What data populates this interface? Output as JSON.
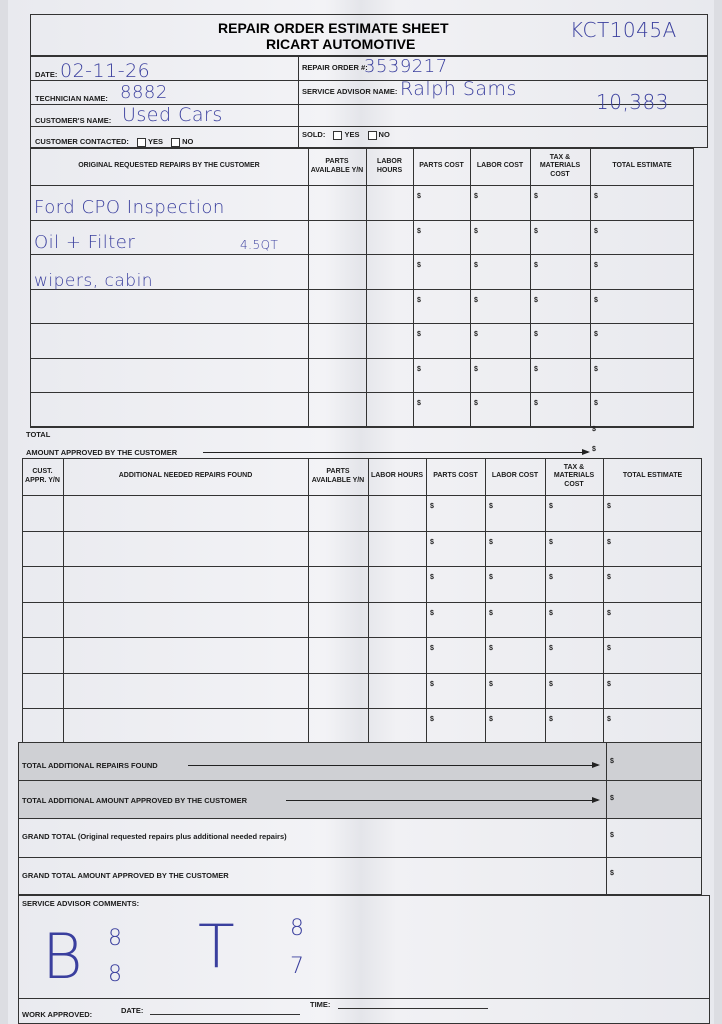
{
  "header": {
    "title": "REPAIR ORDER ESTIMATE SHEET",
    "subtitle": "RICART AUTOMOTIVE",
    "stock_number": "KCT1045A"
  },
  "fields": {
    "date_label": "DATE:",
    "date_value": "02-11-26",
    "repair_order_label": "REPAIR ORDER #:",
    "repair_order_value": "3539217",
    "technician_label": "TECHNICIAN NAME:",
    "technician_value": "8882",
    "advisor_label": "SERVICE ADVISOR NAME:",
    "advisor_value": "Ralph Sams",
    "customer_label": "CUSTOMER'S NAME:",
    "customer_value": "Used Cars",
    "mileage_value": "10,383",
    "contacted_label": "CUSTOMER CONTACTED:",
    "yes_label": "YES",
    "no_label": "NO",
    "sold_label": "SOLD:"
  },
  "original_table": {
    "headers": [
      "ORIGINAL REQUESTED REPAIRS BY THE CUSTOMER",
      "PARTS AVAILABLE Y/N",
      "LABOR HOURS",
      "PARTS COST",
      "LABOR COST",
      "TAX & MATERIALS COST",
      "TOTAL ESTIMATE"
    ],
    "currency": "$",
    "handwritten_lines": [
      "Ford CPO Inspection",
      "Oil + Filter",
      "wipers, cabin"
    ],
    "oil_note": "4.5QT",
    "total_label": "TOTAL",
    "amount_approved_label": "AMOUNT APPROVED BY THE CUSTOMER"
  },
  "additional_table": {
    "headers": [
      "CUST. APPR. Y/N",
      "ADDITIONAL NEEDED REPAIRS FOUND",
      "PARTS AVAILABLE Y/N",
      "LABOR HOURS",
      "PARTS COST",
      "LABOR COST",
      "TAX & MATERIALS COST",
      "TOTAL ESTIMATE"
    ],
    "currency": "$"
  },
  "summary": {
    "total_additional_label": "TOTAL ADDITIONAL REPAIRS FOUND",
    "total_additional_approved_label": "TOTAL ADDITIONAL AMOUNT APPROVED BY THE CUSTOMER",
    "grand_total_label": "GRAND TOTAL (Original requested repairs plus additional needed repairs)",
    "grand_total_approved_label": "GRAND TOTAL AMOUNT APPROVED BY THE CUSTOMER",
    "currency": "$"
  },
  "comments": {
    "label": "SERVICE ADVISOR COMMENTS:",
    "b_letter": "B",
    "b_top": "8",
    "b_bottom": "8",
    "t_letter": "T",
    "t_top": "8",
    "t_bottom": "7"
  },
  "footer": {
    "work_approved_label": "WORK APPROVED:",
    "date_label": "DATE:",
    "time_label": "TIME:"
  }
}
